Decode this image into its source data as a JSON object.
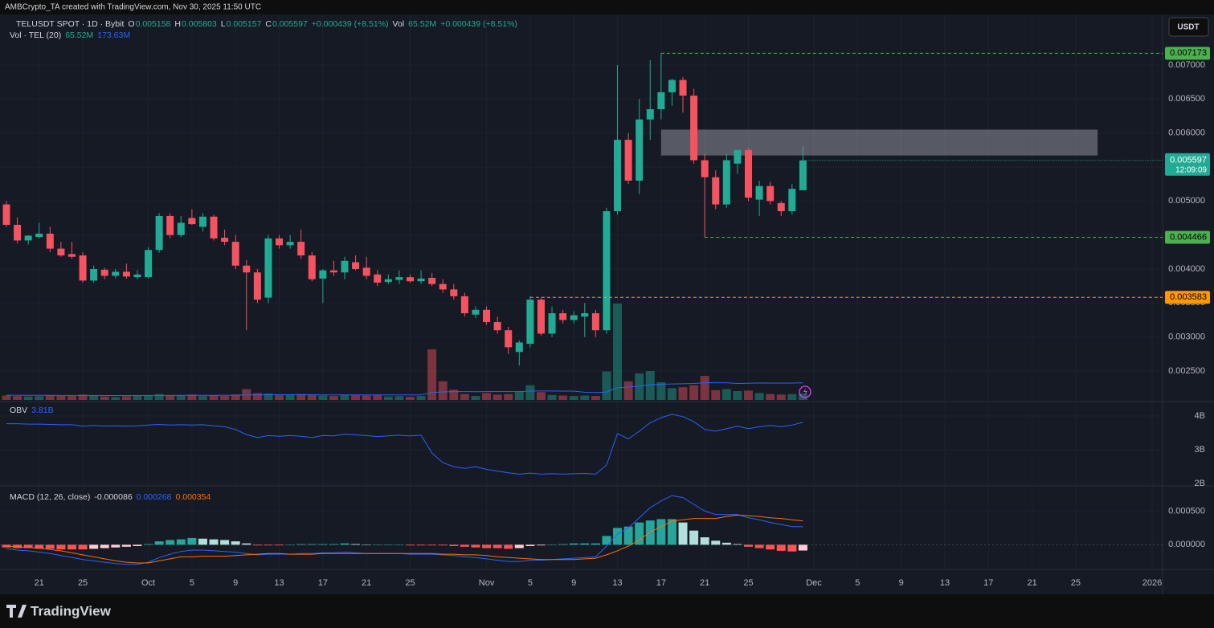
{
  "header": {
    "credit": "AMBCrypto_TA created with TradingView.com, Nov 30, 2025 11:50 UTC",
    "symbol": "TELUSDT SPOT · 1D · Bybit",
    "ohlc": [
      [
        "O",
        "0.005158"
      ],
      [
        "H",
        "0.005803"
      ],
      [
        "L",
        "0.005157"
      ],
      [
        "C",
        "0.005597"
      ]
    ],
    "change": "+0.000439 (+8.51%)",
    "vol_label": "Vol",
    "vol": "65.52M",
    "vol_change": "+0.000439 (+8.51%)",
    "currency": "USDT",
    "brand": "TradingView"
  },
  "chart_data": [
    {
      "type": "candlestick",
      "name": "TELUSDT",
      "x": [
        "2025-09-18",
        "2025-09-19",
        "2025-09-20",
        "2025-09-21",
        "2025-09-22",
        "2025-09-23",
        "2025-09-24",
        "2025-09-25",
        "2025-09-26",
        "2025-09-27",
        "2025-09-28",
        "2025-09-29",
        "2025-09-30",
        "2025-10-01",
        "2025-10-02",
        "2025-10-03",
        "2025-10-04",
        "2025-10-05",
        "2025-10-06",
        "2025-10-07",
        "2025-10-08",
        "2025-10-09",
        "2025-10-10",
        "2025-10-11",
        "2025-10-12",
        "2025-10-13",
        "2025-10-14",
        "2025-10-15",
        "2025-10-16",
        "2025-10-17",
        "2025-10-18",
        "2025-10-19",
        "2025-10-20",
        "2025-10-21",
        "2025-10-22",
        "2025-10-23",
        "2025-10-24",
        "2025-10-25",
        "2025-10-26",
        "2025-10-27",
        "2025-10-28",
        "2025-10-29",
        "2025-10-30",
        "2025-10-31",
        "2025-11-01",
        "2025-11-02",
        "2025-11-03",
        "2025-11-04",
        "2025-11-05",
        "2025-11-06",
        "2025-11-07",
        "2025-11-08",
        "2025-11-09",
        "2025-11-10",
        "2025-11-11",
        "2025-11-12",
        "2025-11-13",
        "2025-11-14",
        "2025-11-15",
        "2025-11-16",
        "2025-11-17",
        "2025-11-18",
        "2025-11-19",
        "2025-11-20",
        "2025-11-21",
        "2025-11-22",
        "2025-11-23",
        "2025-11-24",
        "2025-11-25",
        "2025-11-26",
        "2025-11-27",
        "2025-11-28",
        "2025-11-29",
        "2025-11-30"
      ],
      "open": [
        0.00495,
        0.00465,
        0.00442,
        0.00447,
        0.00452,
        0.0043,
        0.00422,
        0.0042,
        0.00383,
        0.00399,
        0.0039,
        0.00396,
        0.00388,
        0.00388,
        0.00428,
        0.00478,
        0.0045,
        0.00475,
        0.00462,
        0.00477,
        0.00446,
        0.0044,
        0.00405,
        0.00395,
        0.00358,
        0.00445,
        0.00435,
        0.0044,
        0.0042,
        0.00386,
        0.00398,
        0.00395,
        0.0041,
        0.00402,
        0.00392,
        0.00381,
        0.00384,
        0.00388,
        0.00382,
        0.00387,
        0.00378,
        0.0037,
        0.0036,
        0.00333,
        0.0034,
        0.00322,
        0.0031,
        0.00278,
        0.0029,
        0.00355,
        0.00305,
        0.00335,
        0.00325,
        0.0033,
        0.00335,
        0.0031,
        0.00485,
        0.0059,
        0.0053,
        0.0062,
        0.00635,
        0.0066,
        0.00678,
        0.00655,
        0.0056,
        0.00535,
        0.00495,
        0.00555,
        0.00575,
        0.00502,
        0.00522,
        0.00497,
        0.00485,
        0.005158
      ],
      "high": [
        0.005,
        0.00476,
        0.0045,
        0.00468,
        0.00462,
        0.0044,
        0.0044,
        0.00425,
        0.00405,
        0.00402,
        0.004,
        0.00408,
        0.00398,
        0.00432,
        0.00482,
        0.00482,
        0.00478,
        0.00488,
        0.00482,
        0.0048,
        0.00458,
        0.0045,
        0.00413,
        0.004,
        0.0045,
        0.0045,
        0.0045,
        0.00458,
        0.00425,
        0.004,
        0.00412,
        0.00418,
        0.0042,
        0.00418,
        0.00398,
        0.00392,
        0.00398,
        0.00392,
        0.00398,
        0.00394,
        0.00385,
        0.00378,
        0.00365,
        0.00345,
        0.00345,
        0.0033,
        0.00315,
        0.00295,
        0.0036,
        0.00358,
        0.00345,
        0.0034,
        0.00338,
        0.0035,
        0.0034,
        0.0049,
        0.007,
        0.006,
        0.0065,
        0.00707,
        0.007173,
        0.0068,
        0.00682,
        0.00665,
        0.0057,
        0.00545,
        0.0057,
        0.00575,
        0.00578,
        0.0053,
        0.00528,
        0.005,
        0.00525,
        0.005803
      ],
      "low": [
        0.00462,
        0.00438,
        0.00436,
        0.00445,
        0.00425,
        0.00418,
        0.00415,
        0.0038,
        0.0038,
        0.00385,
        0.00386,
        0.00386,
        0.00385,
        0.00386,
        0.00424,
        0.00445,
        0.00447,
        0.00465,
        0.00455,
        0.00442,
        0.00435,
        0.004,
        0.0031,
        0.0035,
        0.0035,
        0.0043,
        0.0043,
        0.00415,
        0.00382,
        0.0035,
        0.0039,
        0.00385,
        0.00398,
        0.00385,
        0.00375,
        0.00378,
        0.00378,
        0.0038,
        0.00378,
        0.00375,
        0.00365,
        0.00355,
        0.0033,
        0.00328,
        0.00318,
        0.00305,
        0.00275,
        0.00258,
        0.00285,
        0.00302,
        0.003,
        0.0032,
        0.0032,
        0.003,
        0.003,
        0.00305,
        0.0048,
        0.00525,
        0.0051,
        0.0059,
        0.0062,
        0.0064,
        0.0063,
        0.00555,
        0.004466,
        0.00488,
        0.0049,
        0.0054,
        0.005,
        0.00478,
        0.00495,
        0.00478,
        0.0048,
        0.005157
      ],
      "close": [
        0.00465,
        0.00442,
        0.00449,
        0.00452,
        0.0043,
        0.0042,
        0.00418,
        0.00383,
        0.004,
        0.0039,
        0.00396,
        0.00389,
        0.00392,
        0.00428,
        0.00478,
        0.0045,
        0.00468,
        0.00466,
        0.00477,
        0.00445,
        0.0044,
        0.00405,
        0.00395,
        0.00355,
        0.00445,
        0.00435,
        0.0044,
        0.0042,
        0.00385,
        0.00398,
        0.00395,
        0.00412,
        0.004,
        0.0039,
        0.0038,
        0.00385,
        0.00388,
        0.00382,
        0.00386,
        0.00378,
        0.0037,
        0.0036,
        0.00335,
        0.0034,
        0.00322,
        0.0031,
        0.00285,
        0.00292,
        0.00355,
        0.00305,
        0.00335,
        0.00325,
        0.00332,
        0.00335,
        0.0031,
        0.00485,
        0.0059,
        0.0053,
        0.0062,
        0.00635,
        0.0066,
        0.00678,
        0.00655,
        0.0056,
        0.00535,
        0.00495,
        0.0056,
        0.00575,
        0.00505,
        0.00522,
        0.005,
        0.00485,
        0.00518,
        0.005597
      ],
      "volume": [
        45,
        40,
        35,
        38,
        50,
        42,
        40,
        55,
        45,
        35,
        30,
        38,
        40,
        45,
        60,
        50,
        45,
        55,
        40,
        48,
        42,
        55,
        110,
        70,
        65,
        48,
        50,
        60,
        55,
        45,
        40,
        52,
        48,
        45,
        50,
        35,
        38,
        32,
        40,
        516,
        190,
        105,
        60,
        40,
        70,
        55,
        60,
        90,
        150,
        80,
        50,
        45,
        40,
        45,
        40,
        290,
        983,
        190,
        270,
        295,
        180,
        120,
        130,
        150,
        245,
        100,
        110,
        90,
        95,
        70,
        60,
        55,
        60,
        65.52
      ],
      "volume_ma": [
        48,
        48,
        47,
        47,
        47,
        46,
        46,
        46,
        46,
        45,
        45,
        45,
        45,
        46,
        46,
        46,
        47,
        47,
        47,
        47,
        48,
        48,
        51,
        52,
        53,
        53,
        53,
        53,
        53,
        52,
        52,
        52,
        52,
        52,
        52,
        52,
        52,
        51,
        51,
        75,
        82,
        85,
        85,
        84,
        85,
        85,
        85,
        86,
        90,
        91,
        91,
        90,
        90,
        78,
        76,
        80,
        125,
        131,
        142,
        155,
        160,
        163,
        165,
        168,
        176,
        175,
        175,
        168,
        170,
        173,
        172,
        172,
        172,
        173.63
      ],
      "volume_legend": {
        "name": "Vol · TEL (20)",
        "value": "65.52M",
        "ma": "173.63M"
      },
      "up_color": "#22ab94",
      "down_color": "#f7525f",
      "ma_color": "#2962ff",
      "xlim": [
        "2025-09-18",
        "2026-01-01"
      ],
      "xticks": [
        {
          "value": "2025-09-21",
          "label": "21"
        },
        {
          "value": "2025-09-25",
          "label": "25"
        },
        {
          "value": "2025-10-01",
          "label": "Oct"
        },
        {
          "value": "2025-10-05",
          "label": "5"
        },
        {
          "value": "2025-10-09",
          "label": "9"
        },
        {
          "value": "2025-10-13",
          "label": "13"
        },
        {
          "value": "2025-10-17",
          "label": "17"
        },
        {
          "value": "2025-10-21",
          "label": "21"
        },
        {
          "value": "2025-10-25",
          "label": "25"
        },
        {
          "value": "2025-11-01",
          "label": "Nov"
        },
        {
          "value": "2025-11-05",
          "label": "5"
        },
        {
          "value": "2025-11-09",
          "label": "9"
        },
        {
          "value": "2025-11-13",
          "label": "13"
        },
        {
          "value": "2025-11-17",
          "label": "17"
        },
        {
          "value": "2025-11-21",
          "label": "21"
        },
        {
          "value": "2025-11-25",
          "label": "25"
        },
        {
          "value": "2025-12-01",
          "label": "Dec"
        },
        {
          "value": "2025-12-05",
          "label": "5"
        },
        {
          "value": "2025-12-09",
          "label": "9"
        },
        {
          "value": "2025-12-13",
          "label": "13"
        },
        {
          "value": "2025-12-17",
          "label": "17"
        },
        {
          "value": "2025-12-21",
          "label": "21"
        },
        {
          "value": "2025-12-25",
          "label": "25"
        },
        {
          "value": "2026-01-01",
          "label": "2026"
        }
      ],
      "ylim": [
        0.002075,
        0.00772
      ],
      "yticks": [
        {
          "value": 0.0025,
          "label": "0.002500"
        },
        {
          "value": 0.003,
          "label": "0.003000"
        },
        {
          "value": 0.0035,
          "label": "0.003500"
        },
        {
          "value": 0.004,
          "label": "0.004000"
        },
        {
          "value": 0.0045,
          "label": "0.004500"
        },
        {
          "value": 0.005,
          "label": "0.005000"
        },
        {
          "value": 0.0055,
          "label": "0.005500"
        },
        {
          "value": 0.006,
          "label": "0.006000"
        },
        {
          "value": 0.0065,
          "label": "0.006500"
        },
        {
          "value": 0.007,
          "label": "0.007000"
        }
      ],
      "grid": true,
      "zone": {
        "x": [
          "2025-11-17",
          "2025-12-27"
        ],
        "y": [
          0.00567,
          0.00605
        ],
        "color": "#d1d4dc"
      },
      "levels": [
        {
          "value": 0.007173,
          "from": "2025-11-17",
          "color": "#4caf50"
        },
        {
          "value": 0.004466,
          "from": "2025-11-21",
          "color": "#4caf50"
        },
        {
          "value": 0.003583,
          "from": "2025-11-05",
          "color": "#ff9800"
        }
      ],
      "last_price": {
        "value": 0.005597,
        "countdown": "12:09:09",
        "color": "#22ab94"
      }
    },
    {
      "type": "line",
      "title": "OBV",
      "legend_value": "3.81B",
      "color": "#2962ff",
      "values": [
        3.77,
        3.77,
        3.76,
        3.76,
        3.75,
        3.74,
        3.74,
        3.7,
        3.72,
        3.7,
        3.71,
        3.7,
        3.71,
        3.73,
        3.75,
        3.73,
        3.74,
        3.73,
        3.74,
        3.71,
        3.68,
        3.6,
        3.45,
        3.36,
        3.42,
        3.4,
        3.42,
        3.4,
        3.36,
        3.42,
        3.41,
        3.46,
        3.44,
        3.42,
        3.39,
        3.41,
        3.43,
        3.41,
        3.43,
        2.9,
        2.62,
        2.5,
        2.45,
        2.5,
        2.42,
        2.37,
        2.32,
        2.28,
        2.31,
        2.28,
        2.29,
        2.28,
        2.29,
        2.3,
        2.28,
        2.55,
        3.48,
        3.32,
        3.55,
        3.8,
        3.95,
        4.05,
        3.98,
        3.83,
        3.6,
        3.55,
        3.62,
        3.7,
        3.62,
        3.68,
        3.72,
        3.68,
        3.73,
        3.81
      ],
      "ylim": [
        1.98,
        4.26
      ],
      "yticks": [
        {
          "value": 2,
          "label": "2B"
        },
        {
          "value": 3,
          "label": "3B"
        },
        {
          "value": 4,
          "label": "4B"
        }
      ]
    },
    {
      "type": "macd",
      "title": "MACD (12, 26, close)",
      "legend": [
        "-0.000086",
        "0.000268",
        "0.000354"
      ],
      "histogram": [
        -4e-05,
        -5e-05,
        -5e-05,
        -6e-05,
        -6e-05,
        -7e-05,
        -7e-05,
        -7e-05,
        -6e-05,
        -5e-05,
        -4e-05,
        -3e-05,
        -2e-05,
        1e-05,
        5e-05,
        7e-05,
        8e-05,
        0.0001,
        9e-05,
        8e-05,
        7e-05,
        5e-05,
        2e-05,
        -1e-05,
        -1e-05,
        -1e-05,
        0,
        1e-05,
        1e-05,
        1e-05,
        1e-05,
        2e-05,
        1e-05,
        0,
        0,
        0,
        0,
        -1e-05,
        -1e-05,
        -1e-05,
        -1e-05,
        -2e-05,
        -3e-05,
        -4e-05,
        -5e-05,
        -5e-05,
        -6e-05,
        -5e-05,
        -2e-05,
        -1e-05,
        0,
        1e-05,
        2e-05,
        2e-05,
        2e-05,
        0.00013,
        0.00025,
        0.00027,
        0.00033,
        0.00036,
        0.00038,
        0.00038,
        0.00033,
        0.00021,
        0.00011,
        6e-05,
        3e-05,
        1e-05,
        -3e-05,
        -5e-05,
        -7e-05,
        -9e-05,
        -0.0001,
        -8.6e-05
      ],
      "macd": [
        -6e-05,
        -8e-05,
        -9e-05,
        -0.00011,
        -0.00013,
        -0.00016,
        -0.00019,
        -0.00022,
        -0.00024,
        -0.00026,
        -0.00028,
        -0.00029,
        -0.00029,
        -0.00026,
        -0.00019,
        -0.00014,
        -0.0001,
        -8e-05,
        -8e-05,
        -9e-05,
        -0.0001,
        -0.00011,
        -0.00013,
        -0.00015,
        -0.00014,
        -0.00014,
        -0.00014,
        -0.00013,
        -0.00013,
        -0.00012,
        -0.00012,
        -0.00011,
        -0.00012,
        -0.00013,
        -0.00013,
        -0.00013,
        -0.00013,
        -0.00014,
        -0.00014,
        -0.00014,
        -0.00015,
        -0.00016,
        -0.00018,
        -0.00019,
        -0.00021,
        -0.00023,
        -0.00025,
        -0.00025,
        -0.00023,
        -0.00023,
        -0.00022,
        -0.00021,
        -0.0002,
        -0.00019,
        -0.00018,
        -2e-05,
        0.00016,
        0.00025,
        0.0004,
        0.00055,
        0.00065,
        0.00073,
        0.0007,
        0.0006,
        0.0005,
        0.00045,
        0.00045,
        0.00045,
        0.0004,
        0.00037,
        0.00033,
        0.0003,
        0.00027,
        0.000268
      ],
      "signal": [
        -2e-05,
        -3e-05,
        -4e-05,
        -5e-05,
        -7e-05,
        -9e-05,
        -0.00012,
        -0.00015,
        -0.00018,
        -0.00021,
        -0.00024,
        -0.00026,
        -0.00027,
        -0.00027,
        -0.00024,
        -0.00021,
        -0.00018,
        -0.00018,
        -0.00017,
        -0.00017,
        -0.00017,
        -0.00016,
        -0.00015,
        -0.00014,
        -0.00013,
        -0.00013,
        -0.00014,
        -0.00014,
        -0.00014,
        -0.00013,
        -0.00013,
        -0.00013,
        -0.00013,
        -0.00013,
        -0.00013,
        -0.00013,
        -0.00013,
        -0.00013,
        -0.00013,
        -0.00013,
        -0.00014,
        -0.00014,
        -0.00015,
        -0.00015,
        -0.00016,
        -0.00018,
        -0.00019,
        -0.0002,
        -0.00021,
        -0.00022,
        -0.00022,
        -0.00022,
        -0.00022,
        -0.00021,
        -0.0002,
        -0.00015,
        -9e-05,
        -2e-05,
        7e-05,
        0.00019,
        0.00027,
        0.00035,
        0.00037,
        0.00039,
        0.00039,
        0.00039,
        0.00042,
        0.00044,
        0.00043,
        0.00042,
        0.0004,
        0.00039,
        0.00037,
        0.000354
      ],
      "macd_color": "#2962ff",
      "signal_color": "#ff6d00",
      "hist_colors": [
        "#26a69a",
        "#b2dfdb",
        "#ff5252",
        "#ffcdd2"
      ],
      "ylim": [
        -0.00033,
        0.00085
      ],
      "yticks": [
        {
          "value": 0,
          "label": "0.000000"
        },
        {
          "value": 0.0005,
          "label": "0.000500"
        }
      ]
    }
  ]
}
